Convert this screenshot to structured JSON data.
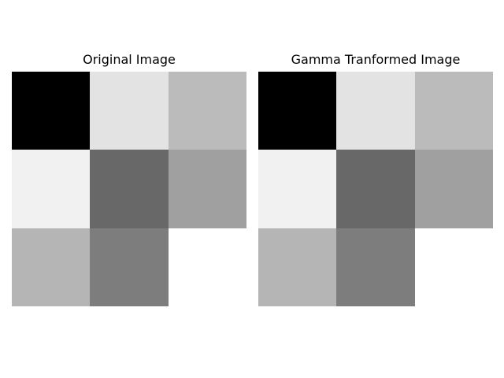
{
  "chart_data": [
    {
      "type": "heatmap",
      "title": "Original Image",
      "colormap": "gray",
      "rows": 3,
      "cols": 3,
      "values": [
        [
          0,
          227,
          187
        ],
        [
          241,
          104,
          160
        ],
        [
          181,
          125,
          255
        ]
      ],
      "axes_visible": false
    },
    {
      "type": "heatmap",
      "title": "Gamma Tranformed Image",
      "colormap": "gray",
      "rows": 3,
      "cols": 3,
      "values": [
        [
          0,
          227,
          187
        ],
        [
          241,
          104,
          160
        ],
        [
          181,
          125,
          255
        ]
      ],
      "axes_visible": false
    }
  ]
}
